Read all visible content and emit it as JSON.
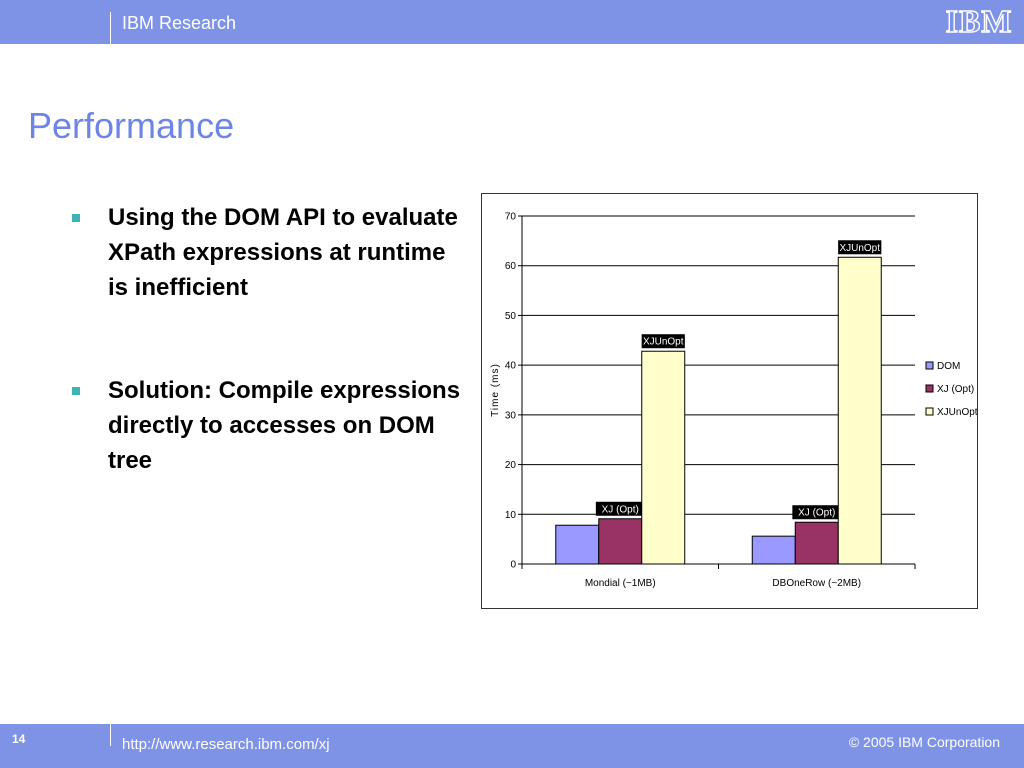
{
  "header": {
    "brand": "IBM Research",
    "logo_text": "IBM"
  },
  "slide": {
    "title": "Performance",
    "bullets": [
      "Using the DOM API to evaluate XPath expressions at runtime is inefficient",
      "Solution: Compile expressions directly to accesses on DOM tree"
    ]
  },
  "footer": {
    "page_number": "14",
    "url": "http://www.research.ibm.com/xj",
    "copyright": "© 2005 IBM Corporation"
  },
  "colors": {
    "header_bg": "#7f93e6",
    "title": "#6d86e6",
    "bullet": "#3fb3b3",
    "dom": "#9999ff",
    "xj_opt": "#993366",
    "xjunopt": "#ffffcc"
  },
  "chart_data": {
    "type": "bar",
    "categories": [
      "Mondial (~1MB)",
      "DBOneRow (~2MB)"
    ],
    "series": [
      {
        "name": "DOM",
        "values": [
          7.8,
          5.6
        ],
        "color": "#9999ff",
        "data_labels": [
          "",
          ""
        ]
      },
      {
        "name": "XJ (Opt)",
        "values": [
          9.1,
          8.4
        ],
        "color": "#993366",
        "data_labels": [
          "XJ (Opt)",
          "XJ (Opt)"
        ]
      },
      {
        "name": "XJUnOpt",
        "values": [
          42.8,
          61.7
        ],
        "color": "#ffffcc",
        "data_labels": [
          "XJUnOpt",
          "XJUnOpt"
        ]
      }
    ],
    "title": "",
    "xlabel": "",
    "ylabel": "Time (ms)",
    "ylim": [
      0,
      70
    ],
    "yticks": [
      0,
      10,
      20,
      30,
      40,
      50,
      60,
      70
    ],
    "grid": true,
    "legend": "right"
  }
}
